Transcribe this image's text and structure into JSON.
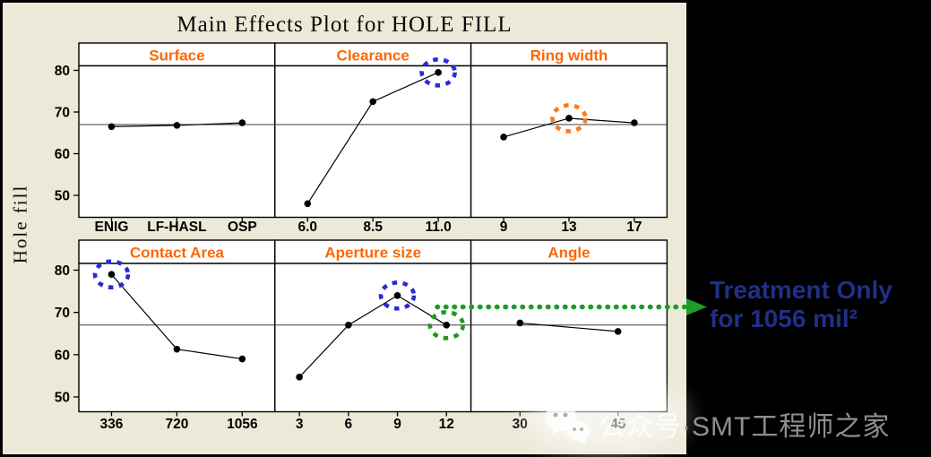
{
  "chart_data": {
    "type": "line",
    "title": "Main Effects Plot for HOLE FILL",
    "ylabel": "Hole fill",
    "yticks": [
      50,
      60,
      70,
      80
    ],
    "ylim": [
      45,
      81
    ],
    "grand_mean": 67,
    "grid": false,
    "header_color": "#FF6600",
    "panels": [
      {
        "name": "Surface",
        "row": 0,
        "col": 0,
        "categories": [
          "ENIG",
          "LF-HASL",
          "OSP"
        ],
        "values": [
          66.5,
          66.8,
          67.4
        ],
        "highlights": []
      },
      {
        "name": "Clearance",
        "row": 0,
        "col": 1,
        "categories": [
          "6.0",
          "8.5",
          "11.0"
        ],
        "values": [
          48.0,
          72.5,
          79.5
        ],
        "highlights": [
          {
            "index": 2,
            "color": "#2A2AD7"
          }
        ]
      },
      {
        "name": "Ring width",
        "row": 0,
        "col": 2,
        "categories": [
          "9",
          "13",
          "17"
        ],
        "values": [
          64.0,
          68.5,
          67.4
        ],
        "highlights": [
          {
            "index": 1,
            "color": "#FF7A14"
          }
        ]
      },
      {
        "name": "Contact Area",
        "row": 1,
        "col": 0,
        "categories": [
          "336",
          "720",
          "1056"
        ],
        "values": [
          79.0,
          61.3,
          59.0
        ],
        "highlights": [
          {
            "index": 0,
            "color": "#2A2AD7"
          }
        ]
      },
      {
        "name": "Aperture size",
        "row": 1,
        "col": 1,
        "categories": [
          "3",
          "6",
          "9",
          "12"
        ],
        "values": [
          54.7,
          67.0,
          74.0,
          67.0
        ],
        "highlights": [
          {
            "index": 2,
            "color": "#2A2AD7"
          },
          {
            "index": 3,
            "color": "#219621"
          }
        ]
      },
      {
        "name": "Angle",
        "row": 1,
        "col": 2,
        "categories": [
          "30",
          "45"
        ],
        "values": [
          67.5,
          65.5
        ],
        "highlights": []
      }
    ],
    "arrow": {
      "at_value": 71.3,
      "color": "#1F9B26",
      "style": "dotted",
      "points_to": "Treatment Only for 1056 mil²"
    }
  },
  "annotation": {
    "line1": "Treatment Only",
    "line2": "for 1056 mil²",
    "color": "#203087"
  },
  "watermark": {
    "icon": "wechat-icon",
    "part1": "公众号",
    "part2": "·SMT工程师之家"
  },
  "colors": {
    "figure_background": "#ECE9D8",
    "panel_background": "#FFFFFF",
    "panel_header_text": "#FF6600",
    "highlight_blue": "#2A2AD7",
    "highlight_orange": "#FF7A14",
    "highlight_green": "#219621",
    "annotation_navy": "#203087",
    "outer_background": "#000000"
  }
}
